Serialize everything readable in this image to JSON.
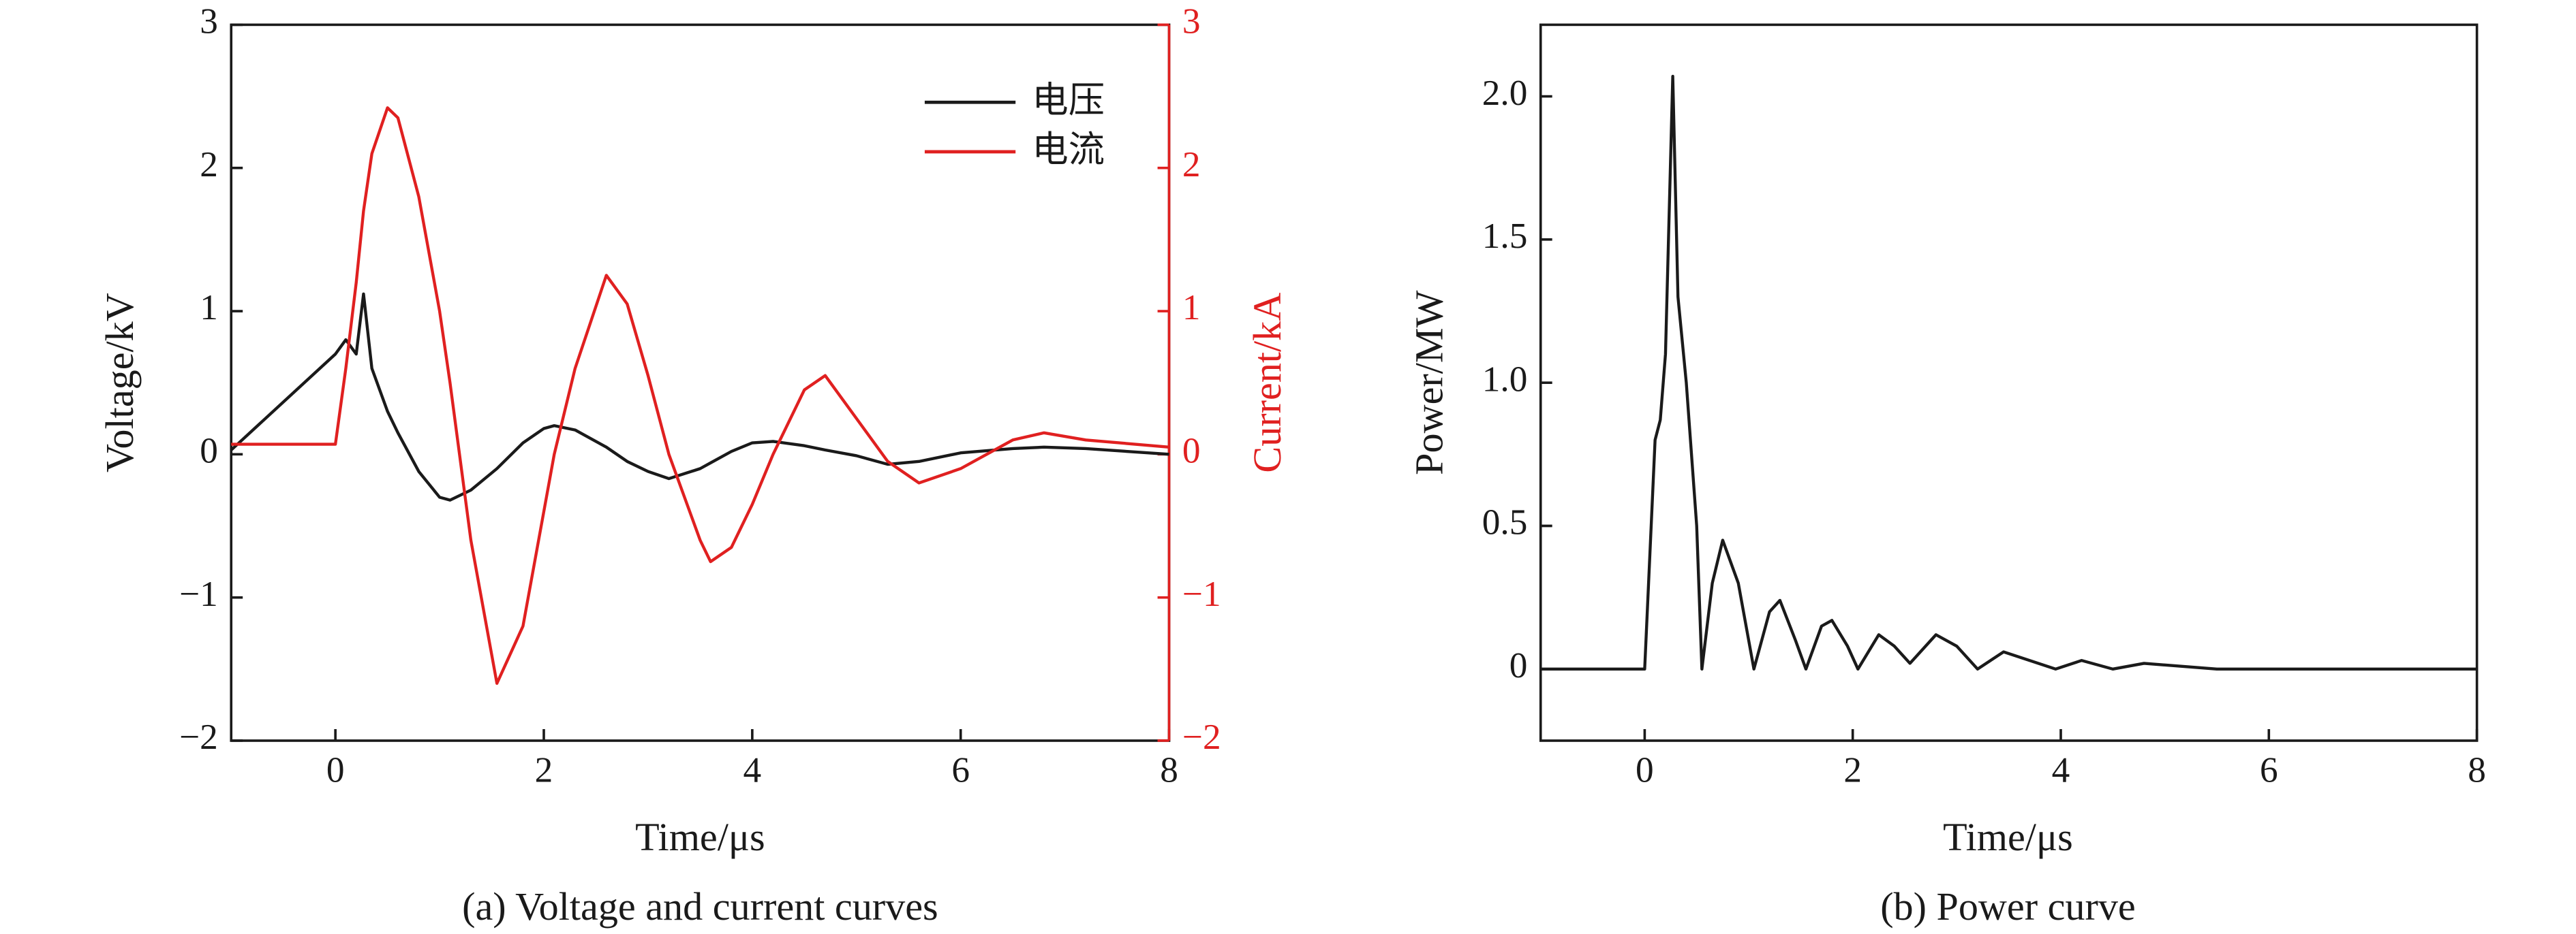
{
  "chart_data": [
    {
      "type": "line",
      "caption": "(a) Voltage and current curves",
      "xlabel": "Time/μs",
      "ylabel": "Voltage/kV",
      "y2label": "Current/kA",
      "x": [
        -1,
        0,
        0.1,
        0.2,
        0.27,
        0.35,
        0.5,
        0.6,
        0.8,
        1.0,
        1.1,
        1.3,
        1.55,
        1.8,
        2.0,
        2.1,
        2.3,
        2.6,
        2.8,
        3.0,
        3.2,
        3.5,
        3.6,
        3.8,
        4.0,
        4.2,
        4.5,
        4.7,
        5.0,
        5.3,
        5.6,
        6.0,
        6.5,
        6.8,
        7.2,
        8
      ],
      "series": [
        {
          "name": "电压",
          "color": "#1a1a1a",
          "values": [
            0.03,
            0.7,
            0.8,
            0.7,
            1.12,
            0.6,
            0.3,
            0.15,
            -0.12,
            -0.3,
            -0.32,
            -0.25,
            -0.1,
            0.08,
            0.18,
            0.2,
            0.17,
            0.05,
            -0.05,
            -0.12,
            -0.17,
            -0.1,
            -0.06,
            0.02,
            0.08,
            0.09,
            0.06,
            0.03,
            -0.01,
            -0.07,
            -0.05,
            0.01,
            0.04,
            0.05,
            0.04,
            0.0
          ]
        },
        {
          "name": "电流",
          "color": "#e02020",
          "axis": "y2",
          "values": [
            0.07,
            0.07,
            0.6,
            1.2,
            1.7,
            2.1,
            2.42,
            2.35,
            1.8,
            1.0,
            0.5,
            -0.6,
            -1.6,
            -1.2,
            -0.4,
            0.0,
            0.6,
            1.25,
            1.05,
            0.55,
            0.0,
            -0.6,
            -0.75,
            -0.65,
            -0.35,
            0.0,
            0.45,
            0.55,
            0.25,
            -0.05,
            -0.2,
            -0.1,
            0.1,
            0.15,
            0.1,
            0.05
          ]
        }
      ],
      "xlim": [
        -1,
        8
      ],
      "xticks": [
        0,
        2,
        4,
        6,
        8
      ],
      "ylim": [
        -2,
        3
      ],
      "yticks": [
        {
          "value": -2,
          "label": "−2"
        },
        {
          "value": -1,
          "label": "−1"
        },
        0,
        1,
        2,
        3
      ],
      "y2lim": [
        -2,
        3
      ],
      "y2ticks": [
        {
          "value": -2,
          "label": "−2"
        },
        {
          "value": -1,
          "label": "−1"
        },
        0,
        1,
        2,
        3
      ],
      "legend": "upper right"
    },
    {
      "type": "line",
      "caption": "(b) Power curve",
      "xlabel": "Time/μs",
      "ylabel": "Power/MW",
      "x": [
        -1,
        0,
        0.05,
        0.1,
        0.15,
        0.2,
        0.27,
        0.32,
        0.4,
        0.5,
        0.55,
        0.65,
        0.75,
        0.9,
        1.05,
        1.2,
        1.3,
        1.45,
        1.55,
        1.7,
        1.8,
        1.95,
        2.05,
        2.25,
        2.4,
        2.55,
        2.8,
        3.0,
        3.2,
        3.45,
        3.7,
        3.95,
        4.2,
        4.5,
        4.8,
        5.5,
        8
      ],
      "series": [
        {
          "name": "Power",
          "color": "#1a1a1a",
          "values": [
            0,
            0,
            0.4,
            0.8,
            0.87,
            1.1,
            2.07,
            1.3,
            1.0,
            0.5,
            0.0,
            0.3,
            0.45,
            0.3,
            0.0,
            0.2,
            0.24,
            0.1,
            0.0,
            0.15,
            0.17,
            0.08,
            0.0,
            0.12,
            0.08,
            0.02,
            0.12,
            0.08,
            0.0,
            0.06,
            0.03,
            0.0,
            0.03,
            0.0,
            0.02,
            0.0,
            0
          ]
        }
      ],
      "xlim": [
        -1,
        8
      ],
      "xticks": [
        0,
        2,
        4,
        6,
        8
      ],
      "ylim": [
        -0.25,
        2.25
      ],
      "yticks": [
        0,
        0.5,
        {
          "value": 1,
          "label": "1.0"
        },
        1.5,
        {
          "value": 2,
          "label": "2.0"
        }
      ]
    }
  ]
}
